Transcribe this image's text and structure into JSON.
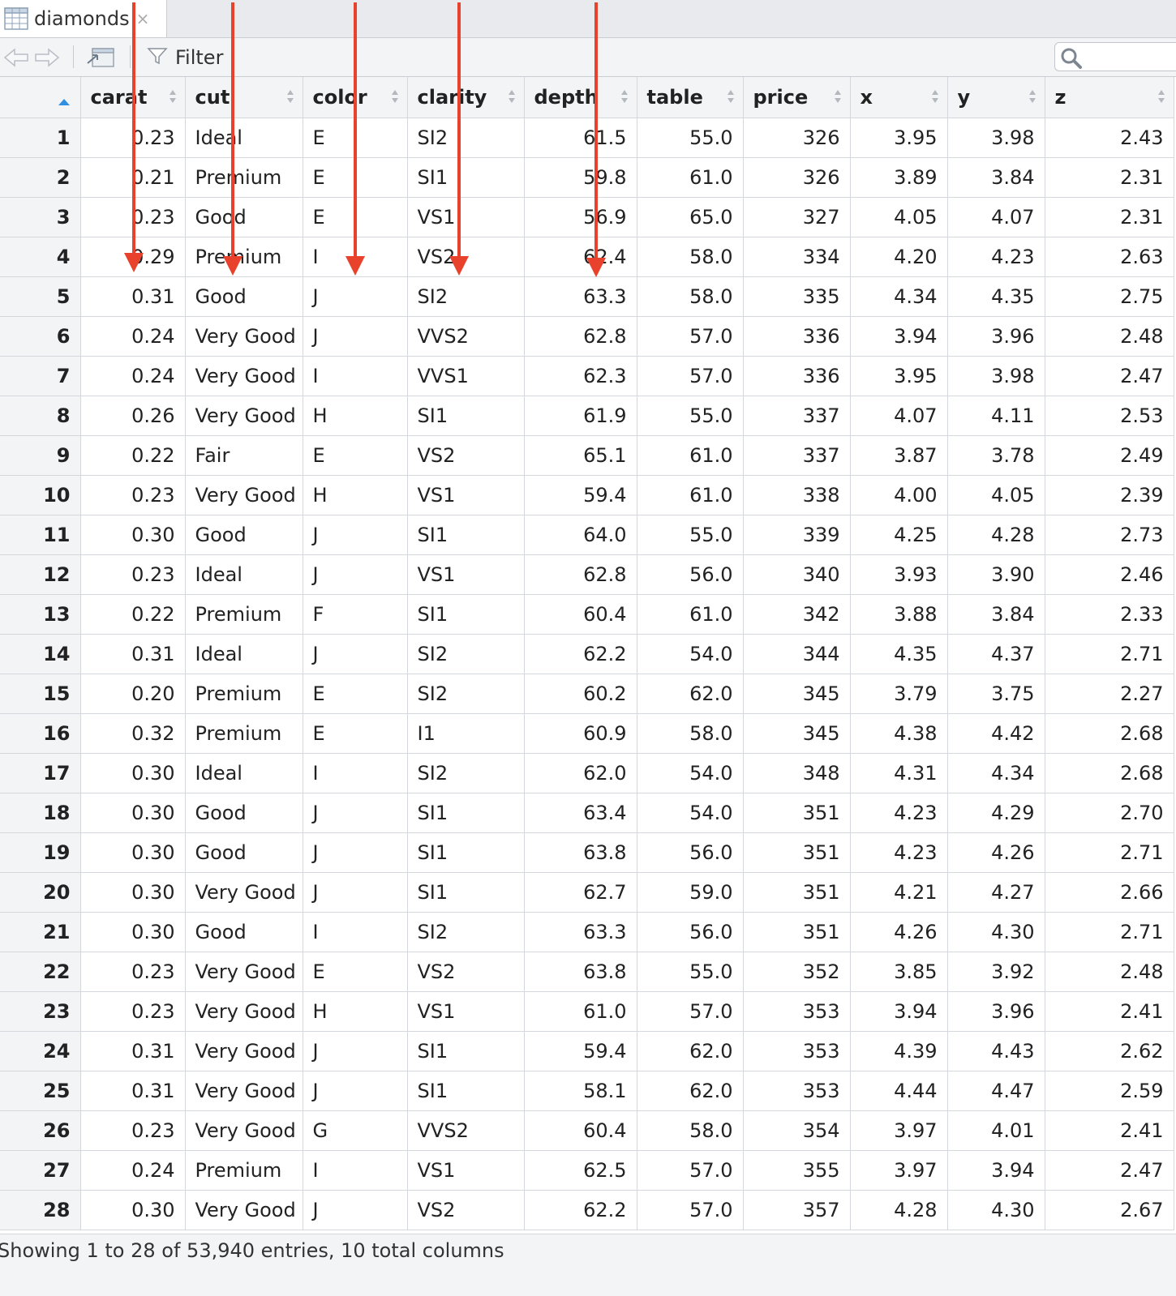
{
  "tab": {
    "title": "diamonds",
    "close_glyph": "×",
    "icon": "table-grid-icon"
  },
  "toolbar": {
    "filter_label": "Filter",
    "search_placeholder": ""
  },
  "columns": [
    "carat",
    "cut",
    "color",
    "clarity",
    "depth",
    "table",
    "price",
    "x",
    "y",
    "z"
  ],
  "rows": [
    [
      "1",
      "0.23",
      "Ideal",
      "E",
      "SI2",
      "61.5",
      "55.0",
      "326",
      "3.95",
      "3.98",
      "2.43"
    ],
    [
      "2",
      "0.21",
      "Premium",
      "E",
      "SI1",
      "59.8",
      "61.0",
      "326",
      "3.89",
      "3.84",
      "2.31"
    ],
    [
      "3",
      "0.23",
      "Good",
      "E",
      "VS1",
      "56.9",
      "65.0",
      "327",
      "4.05",
      "4.07",
      "2.31"
    ],
    [
      "4",
      "0.29",
      "Premium",
      "I",
      "VS2",
      "62.4",
      "58.0",
      "334",
      "4.20",
      "4.23",
      "2.63"
    ],
    [
      "5",
      "0.31",
      "Good",
      "J",
      "SI2",
      "63.3",
      "58.0",
      "335",
      "4.34",
      "4.35",
      "2.75"
    ],
    [
      "6",
      "0.24",
      "Very Good",
      "J",
      "VVS2",
      "62.8",
      "57.0",
      "336",
      "3.94",
      "3.96",
      "2.48"
    ],
    [
      "7",
      "0.24",
      "Very Good",
      "I",
      "VVS1",
      "62.3",
      "57.0",
      "336",
      "3.95",
      "3.98",
      "2.47"
    ],
    [
      "8",
      "0.26",
      "Very Good",
      "H",
      "SI1",
      "61.9",
      "55.0",
      "337",
      "4.07",
      "4.11",
      "2.53"
    ],
    [
      "9",
      "0.22",
      "Fair",
      "E",
      "VS2",
      "65.1",
      "61.0",
      "337",
      "3.87",
      "3.78",
      "2.49"
    ],
    [
      "10",
      "0.23",
      "Very Good",
      "H",
      "VS1",
      "59.4",
      "61.0",
      "338",
      "4.00",
      "4.05",
      "2.39"
    ],
    [
      "11",
      "0.30",
      "Good",
      "J",
      "SI1",
      "64.0",
      "55.0",
      "339",
      "4.25",
      "4.28",
      "2.73"
    ],
    [
      "12",
      "0.23",
      "Ideal",
      "J",
      "VS1",
      "62.8",
      "56.0",
      "340",
      "3.93",
      "3.90",
      "2.46"
    ],
    [
      "13",
      "0.22",
      "Premium",
      "F",
      "SI1",
      "60.4",
      "61.0",
      "342",
      "3.88",
      "3.84",
      "2.33"
    ],
    [
      "14",
      "0.31",
      "Ideal",
      "J",
      "SI2",
      "62.2",
      "54.0",
      "344",
      "4.35",
      "4.37",
      "2.71"
    ],
    [
      "15",
      "0.20",
      "Premium",
      "E",
      "SI2",
      "60.2",
      "62.0",
      "345",
      "3.79",
      "3.75",
      "2.27"
    ],
    [
      "16",
      "0.32",
      "Premium",
      "E",
      "I1",
      "60.9",
      "58.0",
      "345",
      "4.38",
      "4.42",
      "2.68"
    ],
    [
      "17",
      "0.30",
      "Ideal",
      "I",
      "SI2",
      "62.0",
      "54.0",
      "348",
      "4.31",
      "4.34",
      "2.68"
    ],
    [
      "18",
      "0.30",
      "Good",
      "J",
      "SI1",
      "63.4",
      "54.0",
      "351",
      "4.23",
      "4.29",
      "2.70"
    ],
    [
      "19",
      "0.30",
      "Good",
      "J",
      "SI1",
      "63.8",
      "56.0",
      "351",
      "4.23",
      "4.26",
      "2.71"
    ],
    [
      "20",
      "0.30",
      "Very Good",
      "J",
      "SI1",
      "62.7",
      "59.0",
      "351",
      "4.21",
      "4.27",
      "2.66"
    ],
    [
      "21",
      "0.30",
      "Good",
      "I",
      "SI2",
      "63.3",
      "56.0",
      "351",
      "4.26",
      "4.30",
      "2.71"
    ],
    [
      "22",
      "0.23",
      "Very Good",
      "E",
      "VS2",
      "63.8",
      "55.0",
      "352",
      "3.85",
      "3.92",
      "2.48"
    ],
    [
      "23",
      "0.23",
      "Very Good",
      "H",
      "VS1",
      "61.0",
      "57.0",
      "353",
      "3.94",
      "3.96",
      "2.41"
    ],
    [
      "24",
      "0.31",
      "Very Good",
      "J",
      "SI1",
      "59.4",
      "62.0",
      "353",
      "4.39",
      "4.43",
      "2.62"
    ],
    [
      "25",
      "0.31",
      "Very Good",
      "J",
      "SI1",
      "58.1",
      "62.0",
      "353",
      "4.44",
      "4.47",
      "2.59"
    ],
    [
      "26",
      "0.23",
      "Very Good",
      "G",
      "VVS2",
      "60.4",
      "58.0",
      "354",
      "3.97",
      "4.01",
      "2.41"
    ],
    [
      "27",
      "0.24",
      "Premium",
      "I",
      "VS1",
      "62.5",
      "57.0",
      "355",
      "3.97",
      "3.94",
      "2.47"
    ],
    [
      "28",
      "0.30",
      "Very Good",
      "J",
      "VS2",
      "62.2",
      "57.0",
      "357",
      "4.28",
      "4.30",
      "2.67"
    ]
  ],
  "footer": {
    "status": "Showing 1 to 28 of 53,940 entries, 10 total columns"
  },
  "colors": {
    "annotation_arrow": "#e8412c",
    "sort_active": "#2f8fe0",
    "header_bg": "#f3f4f6",
    "border": "#d4d7db"
  }
}
